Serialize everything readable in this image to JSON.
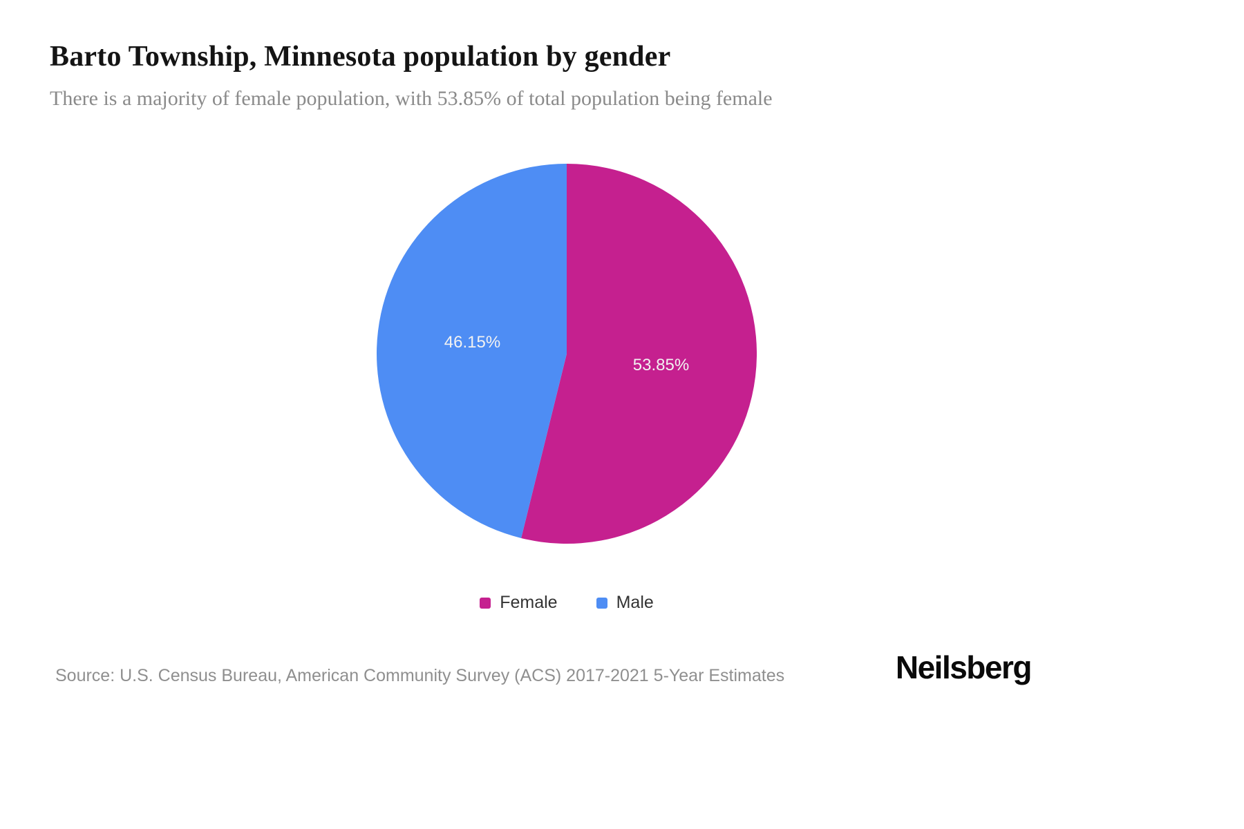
{
  "header": {
    "title": "Barto Township, Minnesota population by gender",
    "subtitle": "There is a majority of female population, with 53.85% of total population being female"
  },
  "chart_data": {
    "type": "pie",
    "title": "Barto Township, Minnesota population by gender",
    "slices": [
      {
        "label": "Female",
        "value": 53.85,
        "display_label": "53.85%",
        "color": "#c5208f"
      },
      {
        "label": "Male",
        "value": 46.15,
        "display_label": "46.15%",
        "color": "#4e8df4"
      }
    ],
    "start_angle_deg": 0,
    "direction": "clockwise",
    "value_label_color": "#f2f2f2",
    "legend_position": "bottom"
  },
  "legend": {
    "items": [
      {
        "label": "Female",
        "color": "#c5208f"
      },
      {
        "label": "Male",
        "color": "#4e8df4"
      }
    ]
  },
  "footer": {
    "source": "Source: U.S. Census Bureau, American Community Survey (ACS) 2017-2021 5-Year Estimates",
    "brand": "Neilsberg"
  }
}
